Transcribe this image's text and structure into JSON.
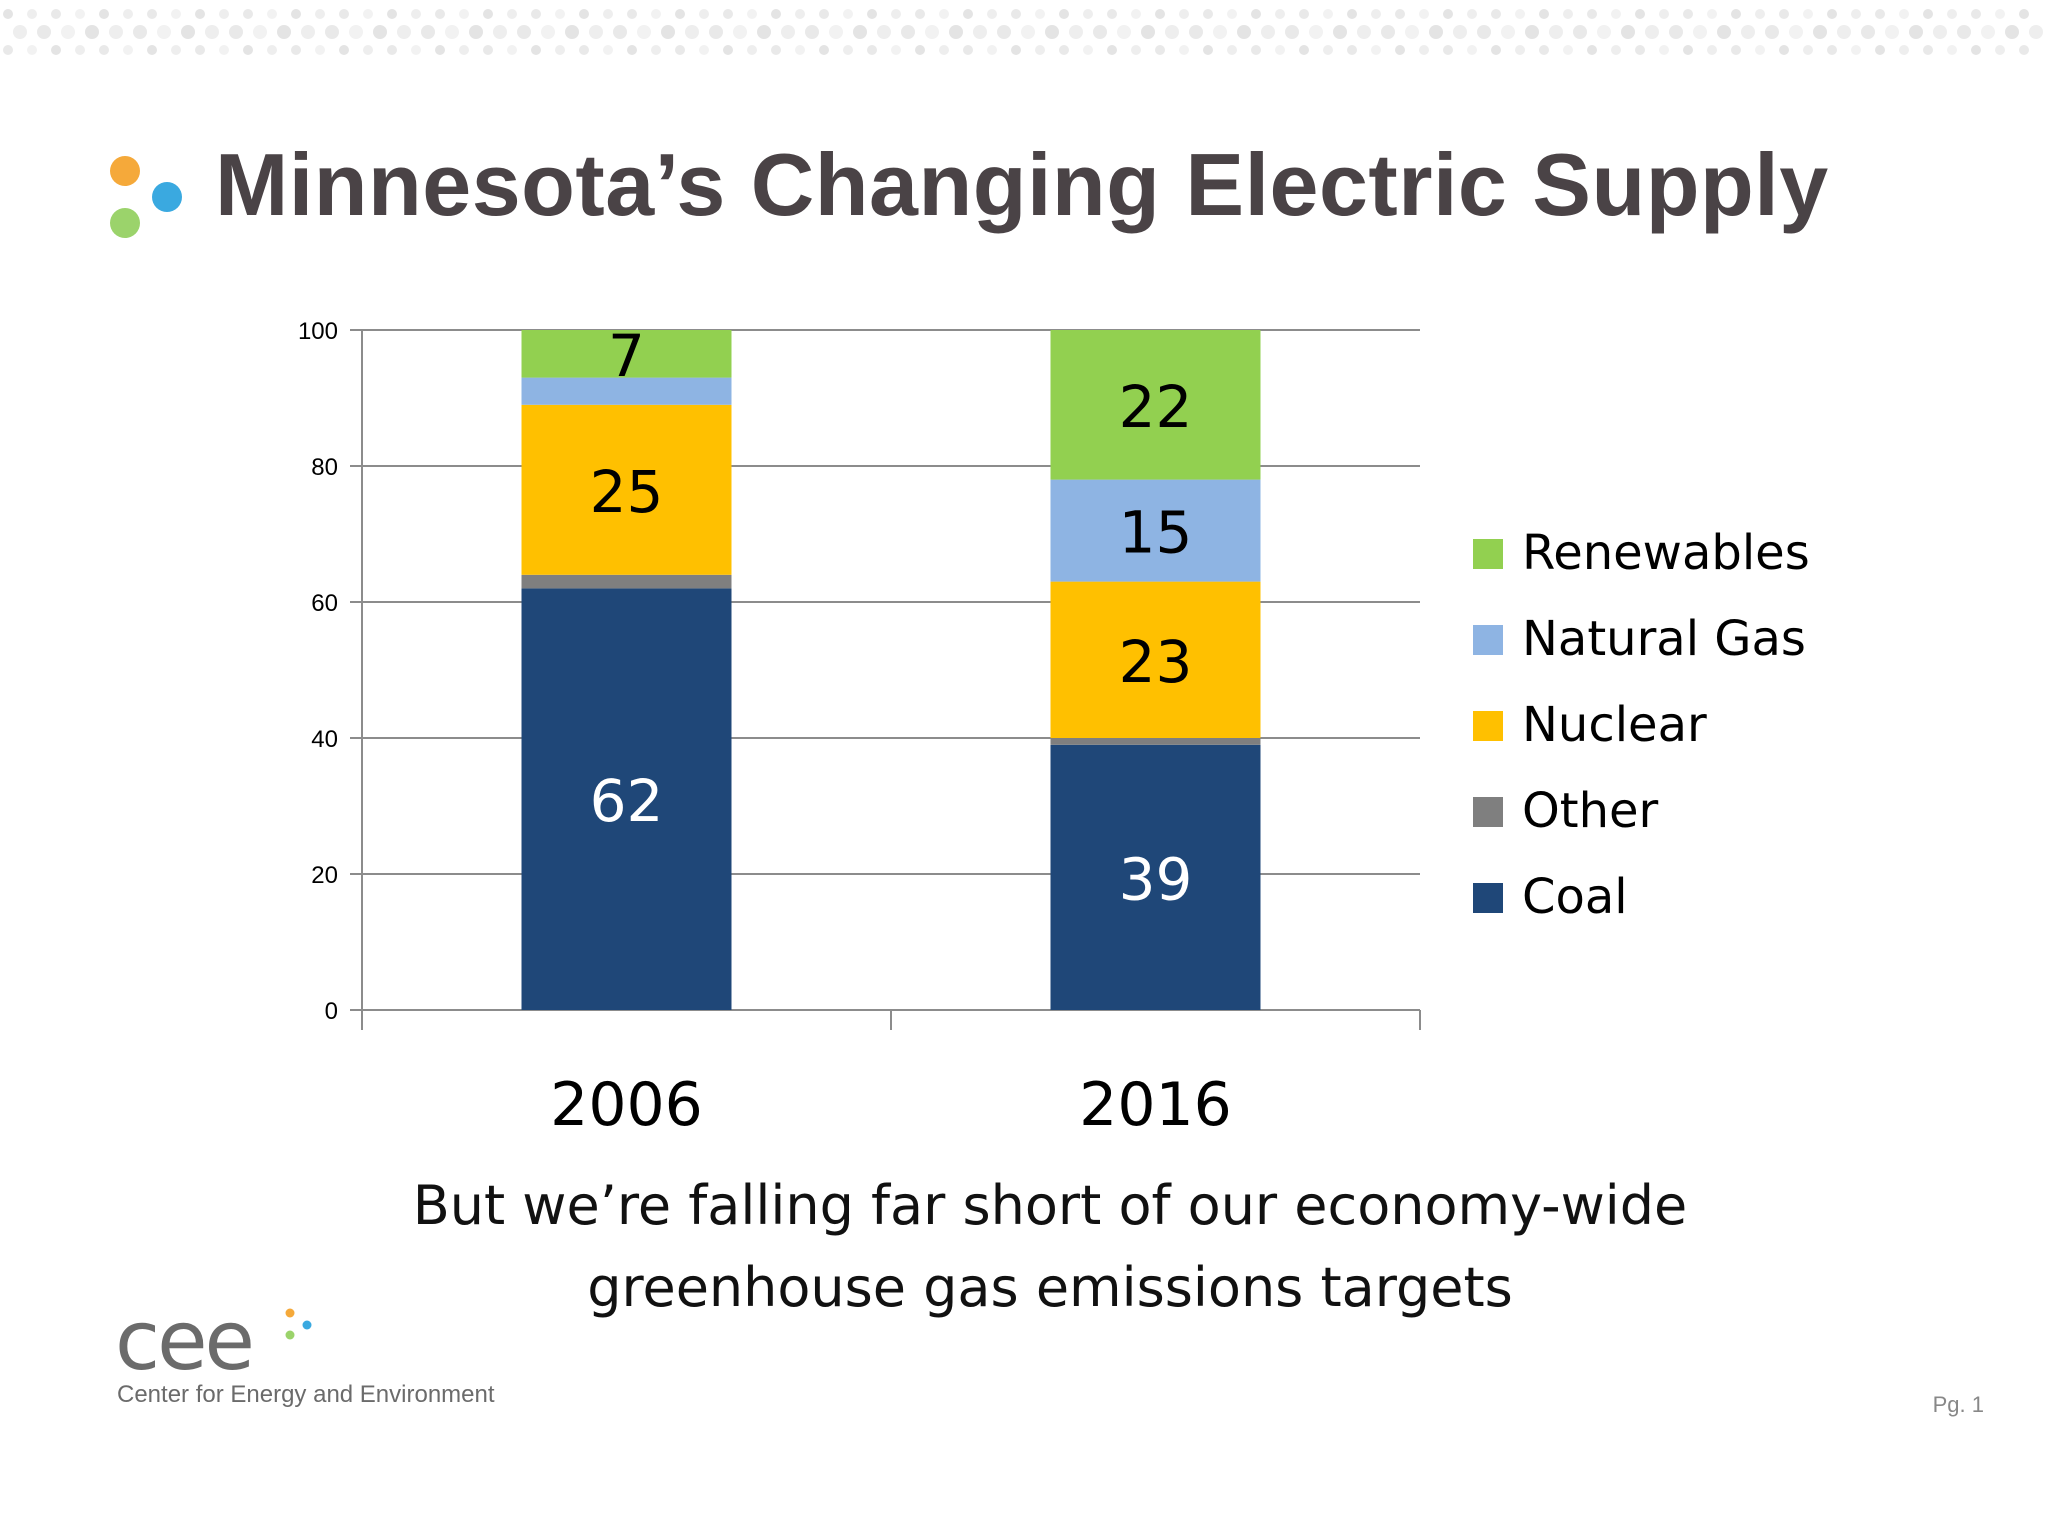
{
  "title": "Minnesota’s Changing Electric Supply",
  "caption": {
    "line1": "But we’re falling far short of our economy-wide",
    "line2": "greenhouse gas emissions targets"
  },
  "footer": {
    "logo_word": "cee",
    "org_name": "Center for Energy and Environment",
    "page_label": "Pg. 1"
  },
  "colors": {
    "title": "#4a4346",
    "logo_orange": "#f5a93a",
    "logo_blue": "#3aa9e0",
    "logo_green": "#9bd36b"
  },
  "chart_data": {
    "type": "bar",
    "stacked": true,
    "categories": [
      "2006",
      "2016"
    ],
    "ylim": [
      0,
      100
    ],
    "yticks": [
      "0",
      "20",
      "40",
      "60",
      "80",
      "100"
    ],
    "grid": true,
    "legend_position": "right",
    "series": [
      {
        "name": "Coal",
        "color": "#1f4778",
        "label_color": "#ffffff",
        "values": [
          62,
          39
        ],
        "labels": [
          "62",
          "39"
        ]
      },
      {
        "name": "Other",
        "color": "#7f7f7f",
        "label_color": "#000000",
        "values": [
          2,
          1
        ],
        "labels": [
          "",
          ""
        ]
      },
      {
        "name": "Nuclear",
        "color": "#ffc000",
        "label_color": "#000000",
        "values": [
          25,
          23
        ],
        "labels": [
          "25",
          "23"
        ]
      },
      {
        "name": "Natural Gas",
        "color": "#8eb4e3",
        "label_color": "#000000",
        "values": [
          4,
          15
        ],
        "labels": [
          "",
          "15"
        ]
      },
      {
        "name": "Renewables",
        "color": "#92d050",
        "label_color": "#000000",
        "values": [
          7,
          22
        ],
        "labels": [
          "7",
          "22"
        ]
      }
    ],
    "legend_order": [
      "Renewables",
      "Natural Gas",
      "Nuclear",
      "Other",
      "Coal"
    ]
  }
}
